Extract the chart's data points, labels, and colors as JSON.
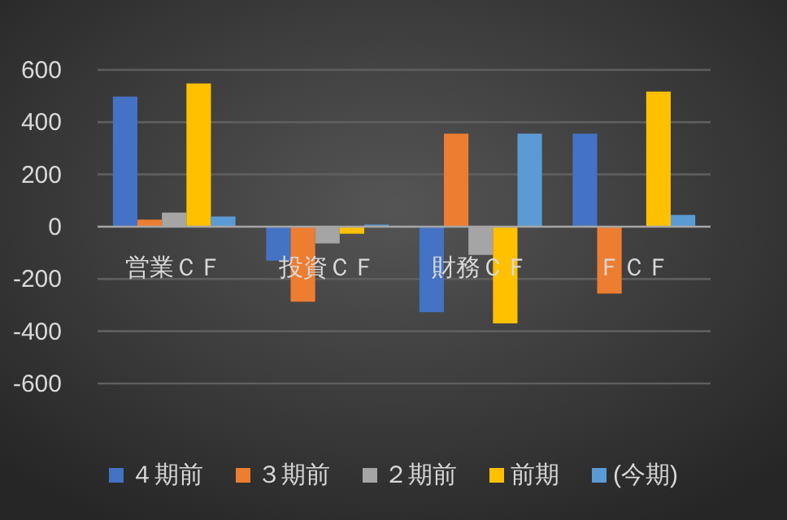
{
  "chart_data": {
    "type": "bar",
    "categories": [
      "営業ＣＦ",
      "投資ＣＦ",
      "財務ＣＦ",
      "ＦＣＦ"
    ],
    "series": [
      {
        "name": "４期前",
        "color": "#4472c4",
        "values": [
          498,
          -130,
          -327,
          356
        ]
      },
      {
        "name": "３期前",
        "color": "#ed7d31",
        "values": [
          27,
          -287,
          356,
          -256
        ]
      },
      {
        "name": "２期前",
        "color": "#a5a5a5",
        "values": [
          54,
          -64,
          -108,
          null
        ]
      },
      {
        "name": "前期",
        "color": "#ffc000",
        "values": [
          548,
          -27,
          -370,
          517
        ]
      },
      {
        "name": "(今期)",
        "color": "#5b9bd5",
        "values": [
          39,
          8,
          356,
          45
        ]
      }
    ],
    "ylim": [
      -600,
      600
    ],
    "yticks": [
      -600,
      -400,
      -200,
      0,
      200,
      400,
      600
    ],
    "grid": "y",
    "legend": "bottom"
  }
}
